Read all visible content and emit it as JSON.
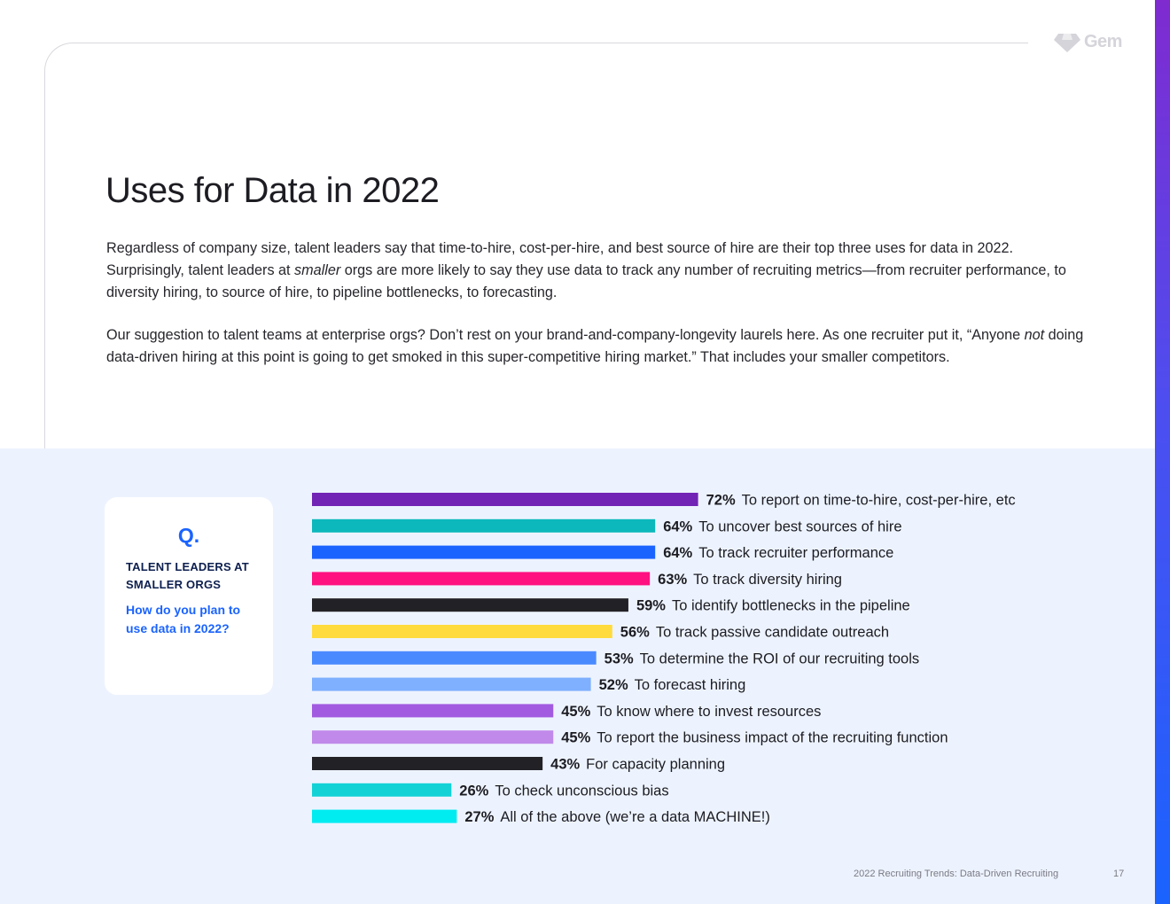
{
  "brand": {
    "name": "Gem",
    "icon": "gem-logo-icon",
    "accent": "#1a63ff"
  },
  "title": "Uses for Data in 2022",
  "paragraphs": {
    "p1_before": "Regardless of company size, talent leaders say that time-to-hire, cost-per-hire, and best source of hire are their top three uses for data in 2022. Surprisingly, talent leaders at ",
    "p1_em": "smaller",
    "p1_after": " orgs are more likely to say they use data to track any number of recruiting metrics—from recruiter performance, to diversity hiring, to source of hire, to pipeline bottlenecks, to forecasting.",
    "p2_before": "Our suggestion to talent teams at enterprise orgs? Don’t rest on your brand-and-company-longevity laurels here. As one recruiter put it, “Anyone ",
    "p2_em": "not",
    "p2_after": " doing data-driven hiring at this point is going to get smoked in this super-competitive hiring market.” That includes your smaller competitors."
  },
  "question_card": {
    "mark": "Q.",
    "audience": "TALENT LEADERS AT SMALLER ORGS",
    "question": "How do you plan to use data in 2022?"
  },
  "chart_data": {
    "type": "bar",
    "orientation": "horizontal",
    "title": "How do you plan to use data in 2022?",
    "xlim": [
      0,
      100
    ],
    "unit": "%",
    "categories": [
      "To report on time-to-hire, cost-per-hire, etc",
      "To uncover best sources of hire",
      "To track recruiter performance",
      "To track diversity hiring",
      "To identify bottlenecks in the pipeline",
      "To track passive candidate outreach",
      "To determine the ROI of our recruiting tools",
      "To forecast hiring",
      "To know where to invest resources",
      "To report the business impact of the recruiting function",
      "For capacity planning",
      "To check unconscious bias",
      "All of the above (we’re a data MACHINE!)"
    ],
    "values": [
      72,
      64,
      64,
      63,
      59,
      56,
      53,
      52,
      45,
      45,
      43,
      26,
      27
    ],
    "value_labels": [
      "72%",
      "64%",
      "64%",
      "63%",
      "59%",
      "56%",
      "53%",
      "52%",
      "45%",
      "45%",
      "43%",
      "26%",
      "27%"
    ],
    "colors": [
      "#7224b5",
      "#0cb8bb",
      "#1a63ff",
      "#ff1180",
      "#222126",
      "#ffdb3d",
      "#4a8aff",
      "#7eb0ff",
      "#a25be0",
      "#c089ea",
      "#222126",
      "#12d2d6",
      "#00ecf0"
    ]
  },
  "footer": {
    "title": "2022 Recruiting Trends: Data-Driven Recruiting",
    "page": "17"
  }
}
